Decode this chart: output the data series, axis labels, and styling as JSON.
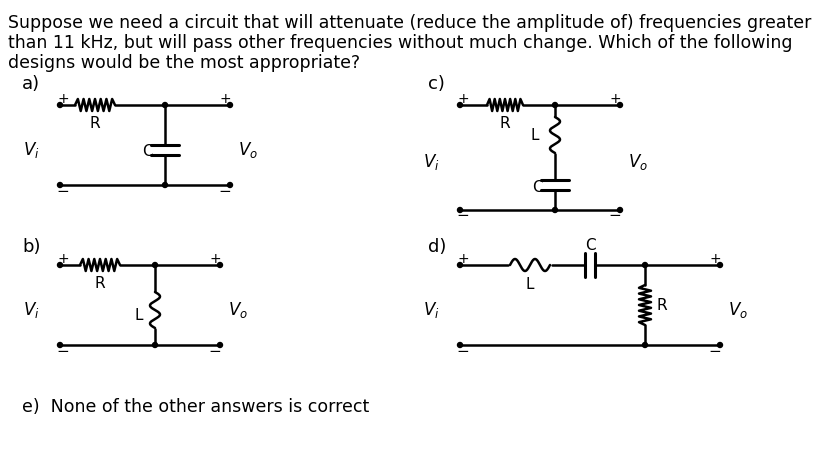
{
  "bg_color": "#ffffff",
  "text_color": "#000000",
  "title_lines": [
    "Suppose we need a circuit that will attenuate (reduce the amplitude of) frequencies greater",
    "than 11 kHz, but will pass other frequencies without much change. Which of the following",
    "designs would be the most appropriate?"
  ],
  "label_a": "a)",
  "label_b": "b)",
  "label_c": "c)",
  "label_d": "d)",
  "label_e": "e)  None of the other answers is correct",
  "fig_width": 8.36,
  "fig_height": 4.59,
  "dpi": 100
}
